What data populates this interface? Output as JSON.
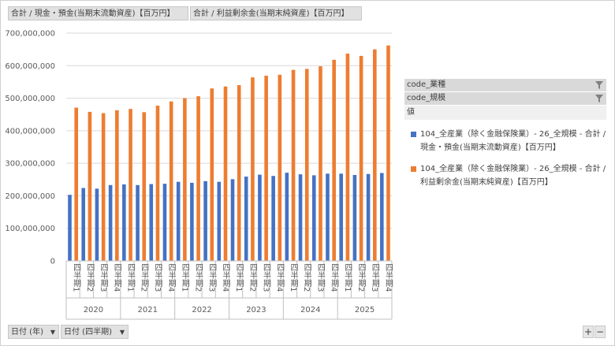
{
  "field_buttons": {
    "series1": "合計 / 現金・預金(当期末流動資産)【百万円】",
    "series2": "合計 / 利益剰余金(当期末純資産)【百万円】"
  },
  "legend": {
    "filter1": "code_業種",
    "filter2": "code_規模",
    "title": "値",
    "items": [
      "104_全産業（除く金融保険業）- 26_全規模 - 合計 / 現金・預金(当期末流動資産)【百万円】",
      "104_全産業（除く金融保険業）- 26_全規模 - 合計 / 利益剰余金(当期末純資産)【百万円】"
    ]
  },
  "axis_buttons": {
    "year": "日付 (年)",
    "quarter": "日付 (四半期)"
  },
  "zoom": {
    "plus": "+",
    "minus": "−"
  },
  "colors": {
    "series1": "#4472C4",
    "series2": "#ED7D31",
    "grid": "#d9d9d9"
  },
  "chart_data": {
    "type": "bar",
    "title": "",
    "ylim": [
      0,
      700000000
    ],
    "yticks": [
      "0",
      "100,000,000",
      "200,000,000",
      "300,000,000",
      "400,000,000",
      "500,000,000",
      "600,000,000",
      "700,000,000"
    ],
    "years": [
      "2020",
      "2021",
      "2022",
      "2023",
      "2024",
      "2025"
    ],
    "quarters": [
      "四半期1",
      "四半期2",
      "四半期3",
      "四半期4"
    ],
    "grid": true,
    "legend_position": "right",
    "series": [
      {
        "values": [
          203000000,
          224000000,
          222000000,
          233000000,
          235000000,
          233000000,
          236000000,
          237000000,
          243000000,
          240000000,
          245000000,
          243000000,
          251000000,
          259000000,
          265000000,
          261000000,
          271000000,
          266000000,
          263000000,
          268000000,
          268000000,
          264000000,
          267000000,
          270000000
        ]
      },
      {
        "values": [
          471000000,
          458000000,
          454000000,
          463000000,
          467000000,
          457000000,
          477000000,
          490000000,
          500000000,
          506000000,
          530000000,
          536000000,
          540000000,
          564000000,
          569000000,
          572000000,
          587000000,
          590000000,
          598000000,
          618000000,
          637000000,
          630000000,
          650000000,
          662000000
        ]
      }
    ]
  }
}
